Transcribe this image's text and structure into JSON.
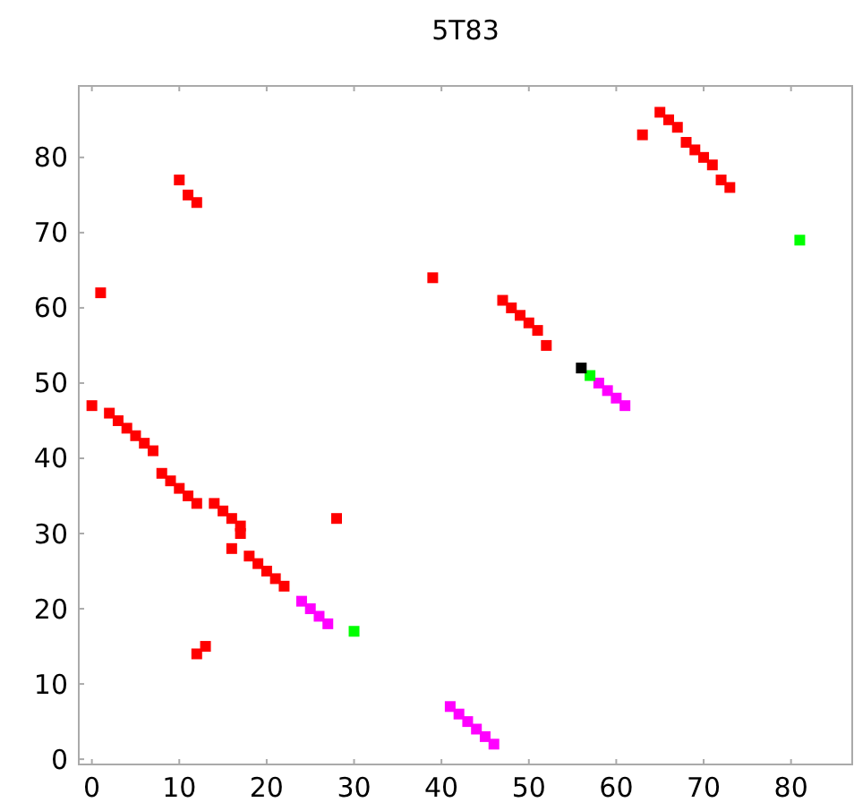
{
  "chart_data": {
    "type": "scatter",
    "title": "5T83",
    "marker": "square",
    "grid": false,
    "xlim": [
      -1.5,
      87
    ],
    "ylim": [
      -0.7,
      89.5
    ],
    "xticks": [
      0,
      10,
      20,
      30,
      40,
      50,
      60,
      70,
      80
    ],
    "yticks": [
      0,
      10,
      20,
      30,
      40,
      50,
      60,
      70,
      80
    ],
    "series": [
      {
        "color": "#ff0000",
        "x": [
          0,
          2,
          3,
          4,
          5,
          6,
          7,
          8,
          9,
          10,
          11,
          12,
          14,
          15,
          16,
          17,
          17,
          16,
          18,
          19,
          20,
          21,
          22,
          28,
          12,
          13,
          1,
          10,
          11,
          12,
          39,
          47,
          48,
          49,
          50,
          51,
          52,
          63,
          65,
          66,
          67,
          68,
          69,
          70,
          71,
          72,
          73
        ],
        "values": [
          47,
          46,
          45,
          44,
          43,
          42,
          41,
          38,
          37,
          36,
          35,
          34,
          34,
          33,
          32,
          31,
          30,
          28,
          27,
          26,
          25,
          24,
          23,
          32,
          14,
          15,
          62,
          77,
          75,
          74,
          64,
          61,
          60,
          59,
          58,
          57,
          55,
          83,
          86,
          85,
          84,
          82,
          81,
          80,
          79,
          77,
          76
        ]
      },
      {
        "color": "#ff00ff",
        "x": [
          24,
          25,
          26,
          27,
          58,
          59,
          60,
          61,
          41,
          42,
          43,
          44,
          45,
          46
        ],
        "values": [
          21,
          20,
          19,
          18,
          50,
          49,
          48,
          47,
          7,
          6,
          5,
          4,
          3,
          2
        ]
      },
      {
        "color": "#00ff00",
        "x": [
          30,
          57,
          81
        ],
        "values": [
          17,
          51,
          69
        ]
      },
      {
        "color": "#000000",
        "x": [
          56
        ],
        "values": [
          52
        ]
      }
    ]
  }
}
